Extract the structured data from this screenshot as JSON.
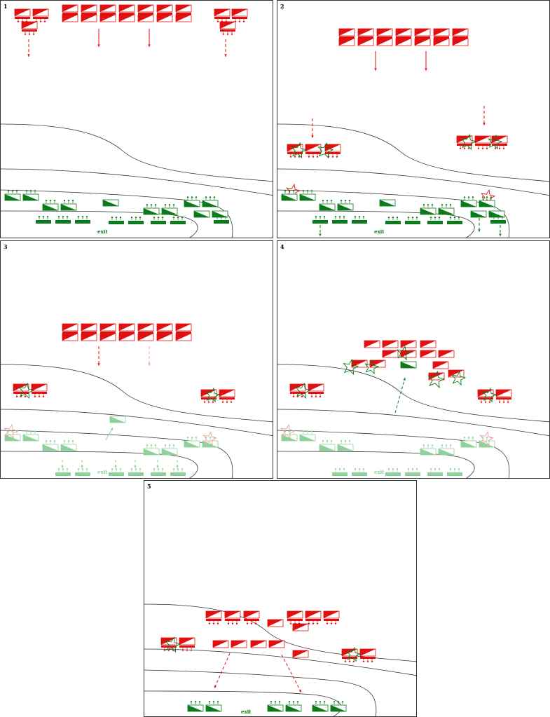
{
  "colors": {
    "red": "#e01010",
    "green": "#0a7a1a",
    "faded_green": "#8fd19a",
    "faded_red": "#f2a0a0",
    "line": "#333333",
    "border": "#333333"
  },
  "panels": [
    {
      "number": "1",
      "exit_label": "exit"
    },
    {
      "number": "2",
      "exit_label": "exit"
    },
    {
      "number": "3",
      "exit_label": "exit"
    },
    {
      "number": "4",
      "exit_label": "exit"
    },
    {
      "number": "5",
      "exit_label": "exit"
    }
  ],
  "icons": {
    "red_unit": "red-unit-counter-icon",
    "green_unit": "green-unit-counter-icon",
    "explosion": "explosion-star-icon",
    "move_arrow": "movement-arrow-icon"
  }
}
